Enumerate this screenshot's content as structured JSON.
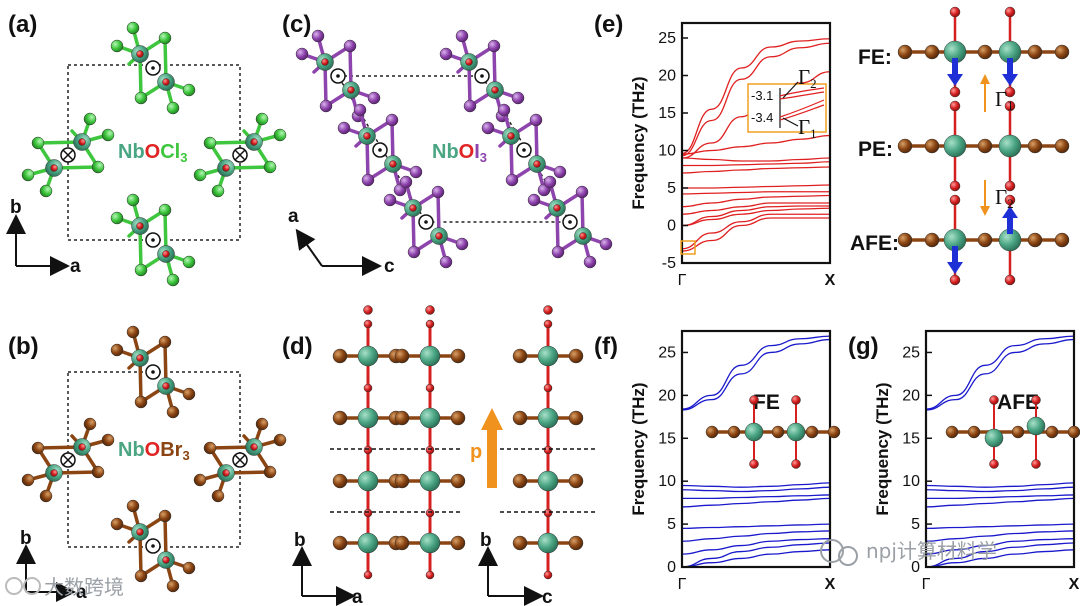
{
  "panels": {
    "a": {
      "label": "(a)",
      "compound_nb": "Nb",
      "compound_o": "O",
      "compound_x": "Cl",
      "compound_sub": "3",
      "axis1": "b",
      "axis2": "a",
      "atom_color": "#3ec63e"
    },
    "b": {
      "label": "(b)",
      "compound_nb": "Nb",
      "compound_o": "O",
      "compound_x": "Br",
      "compound_sub": "3",
      "axis1": "b",
      "axis2": "a",
      "atom_color": "#8b4513"
    },
    "c": {
      "label": "(c)",
      "compound_nb": "Nb",
      "compound_o": "O",
      "compound_x": "I",
      "compound_sub": "3",
      "axis1": "a",
      "axis2": "c",
      "atom_color": "#8e44ad"
    },
    "d": {
      "label": "(d)",
      "axis1": "b",
      "axis2": "a",
      "axis3": "b",
      "axis4": "c",
      "polar": "p"
    },
    "e": {
      "label": "(e)"
    },
    "f": {
      "label": "(f)",
      "tag": "FE"
    },
    "g": {
      "label": "(g)",
      "tag": "AFE"
    },
    "phases": {
      "fe": "FE:",
      "pe": "PE:",
      "afe": "AFE:",
      "g1": "Γ",
      "g1sub": "1",
      "g2": "Γ",
      "g2sub": "2"
    }
  },
  "colors": {
    "nb": "#4aa583",
    "o": "#d62020",
    "cl": "#3ec63e",
    "br": "#8b4513",
    "i": "#8e44ad",
    "e_bands": "#e02020",
    "fg_bands": "#1a1acc",
    "arrow_orange": "#f0921e",
    "arrow_blue": "#1f2fd6"
  },
  "chart_data": [
    {
      "type": "line",
      "panel": "(e)",
      "title": "",
      "xlabel": "",
      "ylabel": "Frequency (THz)",
      "x_ticks": [
        "Γ",
        "X"
      ],
      "ylim": [
        -5,
        27
      ],
      "y_ticks": [
        -5,
        0,
        5,
        10,
        15,
        20,
        25
      ],
      "series": [
        {
          "name": "band-01",
          "values": [
            -3.4,
            -2.0,
            0.0,
            1.0,
            1.0,
            1.0
          ]
        },
        {
          "name": "band-02",
          "values": [
            -3.1,
            -1.0,
            0.5,
            1.5,
            1.5,
            1.5
          ]
        },
        {
          "name": "band-03",
          "values": [
            0.0,
            0.8,
            1.5,
            2.0,
            2.2,
            2.3
          ]
        },
        {
          "name": "band-04",
          "values": [
            0.0,
            1.2,
            2.0,
            2.5,
            2.6,
            2.6
          ]
        },
        {
          "name": "band-05",
          "values": [
            1.5,
            2.0,
            2.5,
            3.0,
            3.0,
            3.0
          ]
        },
        {
          "name": "band-06",
          "values": [
            2.5,
            3.0,
            3.5,
            3.8,
            3.9,
            4.0
          ]
        },
        {
          "name": "band-07",
          "values": [
            4.2,
            4.3,
            4.4,
            4.5,
            4.5,
            4.5
          ]
        },
        {
          "name": "band-08",
          "values": [
            5.0,
            5.0,
            5.1,
            5.2,
            5.3,
            5.4
          ]
        },
        {
          "name": "band-09",
          "values": [
            7.0,
            7.2,
            7.4,
            7.6,
            7.7,
            7.8
          ]
        },
        {
          "name": "band-10",
          "values": [
            8.0,
            8.0,
            8.1,
            8.2,
            8.3,
            8.5
          ]
        },
        {
          "name": "band-11",
          "values": [
            9.0,
            8.8,
            8.6,
            8.6,
            8.8,
            9.0
          ]
        },
        {
          "name": "band-12",
          "values": [
            9.5,
            10.0,
            10.5,
            11.0,
            11.5,
            12.0
          ]
        },
        {
          "name": "band-13",
          "values": [
            9.0,
            11.0,
            14.5,
            17.5,
            19.0,
            20.5
          ]
        },
        {
          "name": "band-14",
          "values": [
            9.3,
            14.0,
            19.5,
            22.5,
            23.7,
            24.3
          ]
        },
        {
          "name": "band-15",
          "values": [
            9.6,
            15.5,
            21.0,
            23.8,
            24.6,
            24.9
          ]
        }
      ],
      "annotations": [
        "-3.1 Γ2",
        "-3.4 Γ1"
      ]
    },
    {
      "type": "line",
      "panel": "(f)",
      "title": "FE",
      "xlabel": "",
      "ylabel": "Frequency (THz)",
      "x_ticks": [
        "Γ",
        "X"
      ],
      "ylim": [
        0,
        27.5
      ],
      "y_ticks": [
        0,
        5,
        10,
        15,
        20,
        25
      ],
      "series": [
        {
          "name": "band-01",
          "values": [
            0.0,
            0.5,
            1.0,
            1.5,
            1.8,
            2.0
          ]
        },
        {
          "name": "band-02",
          "values": [
            0.0,
            1.0,
            1.8,
            2.3,
            2.6,
            2.8
          ]
        },
        {
          "name": "band-03",
          "values": [
            1.5,
            2.0,
            2.5,
            3.0,
            3.2,
            3.3
          ]
        },
        {
          "name": "band-04",
          "values": [
            3.0,
            3.3,
            3.6,
            3.9,
            4.1,
            4.2
          ]
        },
        {
          "name": "band-05",
          "values": [
            4.5,
            4.6,
            4.7,
            4.8,
            4.9,
            5.0
          ]
        },
        {
          "name": "band-06",
          "values": [
            7.0,
            7.2,
            7.4,
            7.6,
            7.8,
            8.0
          ]
        },
        {
          "name": "band-07",
          "values": [
            8.0,
            8.0,
            8.1,
            8.2,
            8.3,
            8.4
          ]
        },
        {
          "name": "band-08",
          "values": [
            9.0,
            8.9,
            8.8,
            8.9,
            9.1,
            9.3
          ]
        },
        {
          "name": "band-09",
          "values": [
            9.5,
            9.4,
            9.3,
            9.4,
            9.6,
            9.8
          ]
        },
        {
          "name": "band-10",
          "values": [
            18.3,
            19.5,
            22.5,
            25.0,
            26.0,
            26.5
          ]
        },
        {
          "name": "band-11",
          "values": [
            18.4,
            20.0,
            23.5,
            25.8,
            26.6,
            26.9
          ]
        }
      ]
    },
    {
      "type": "line",
      "panel": "(g)",
      "title": "AFE",
      "xlabel": "",
      "ylabel": "Frequency (THz)",
      "x_ticks": [
        "Γ",
        "X"
      ],
      "ylim": [
        0,
        27.5
      ],
      "y_ticks": [
        0,
        5,
        10,
        15,
        20,
        25
      ],
      "series": [
        {
          "name": "band-01",
          "values": [
            0.0,
            0.5,
            1.0,
            1.5,
            1.8,
            2.0
          ]
        },
        {
          "name": "band-02",
          "values": [
            0.0,
            1.0,
            1.8,
            2.3,
            2.6,
            2.8
          ]
        },
        {
          "name": "band-03",
          "values": [
            1.5,
            2.0,
            2.5,
            3.0,
            3.2,
            3.3
          ]
        },
        {
          "name": "band-04",
          "values": [
            3.0,
            3.3,
            3.6,
            3.9,
            4.1,
            4.2
          ]
        },
        {
          "name": "band-05",
          "values": [
            4.5,
            4.6,
            4.7,
            4.8,
            4.9,
            5.0
          ]
        },
        {
          "name": "band-06",
          "values": [
            7.0,
            7.2,
            7.4,
            7.6,
            7.8,
            8.0
          ]
        },
        {
          "name": "band-07",
          "values": [
            8.0,
            8.0,
            8.1,
            8.2,
            8.3,
            8.4
          ]
        },
        {
          "name": "band-08",
          "values": [
            9.0,
            8.9,
            8.8,
            8.9,
            9.1,
            9.3
          ]
        },
        {
          "name": "band-09",
          "values": [
            9.5,
            9.4,
            9.3,
            9.4,
            9.6,
            9.8
          ]
        },
        {
          "name": "band-10",
          "values": [
            18.3,
            19.5,
            22.5,
            25.0,
            26.0,
            26.5
          ]
        },
        {
          "name": "band-11",
          "values": [
            18.4,
            20.0,
            23.5,
            25.8,
            26.6,
            26.9
          ]
        }
      ]
    }
  ],
  "watermarks": {
    "left": "大数跨境",
    "right": "npj计算材料学"
  }
}
